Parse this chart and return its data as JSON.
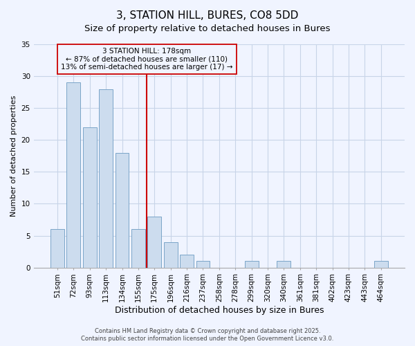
{
  "title": "3, STATION HILL, BURES, CO8 5DD",
  "subtitle": "Size of property relative to detached houses in Bures",
  "xlabel": "Distribution of detached houses by size in Bures",
  "ylabel": "Number of detached properties",
  "bar_labels": [
    "51sqm",
    "72sqm",
    "93sqm",
    "113sqm",
    "134sqm",
    "155sqm",
    "175sqm",
    "196sqm",
    "216sqm",
    "237sqm",
    "258sqm",
    "278sqm",
    "299sqm",
    "320sqm",
    "340sqm",
    "361sqm",
    "381sqm",
    "402sqm",
    "423sqm",
    "443sqm",
    "464sqm"
  ],
  "bar_values": [
    6,
    29,
    22,
    28,
    18,
    6,
    8,
    4,
    2,
    1,
    0,
    0,
    1,
    0,
    1,
    0,
    0,
    0,
    0,
    0,
    1
  ],
  "bar_color": "#ccdcee",
  "bar_edgecolor": "#7aa4c8",
  "vline_index": 6,
  "vline_color": "#cc0000",
  "ylim": [
    0,
    35
  ],
  "yticks": [
    0,
    5,
    10,
    15,
    20,
    25,
    30,
    35
  ],
  "annotation_title": "3 STATION HILL: 178sqm",
  "annotation_line1": "← 87% of detached houses are smaller (110)",
  "annotation_line2": "13% of semi-detached houses are larger (17) →",
  "annotation_box_edgecolor": "#cc0000",
  "background_color": "#f0f4ff",
  "grid_color": "#c8d4e8",
  "footer1": "Contains HM Land Registry data © Crown copyright and database right 2025.",
  "footer2": "Contains public sector information licensed under the Open Government Licence v3.0.",
  "title_fontsize": 11,
  "subtitle_fontsize": 9.5,
  "xlabel_fontsize": 9,
  "ylabel_fontsize": 8,
  "tick_fontsize": 7.5,
  "annotation_fontsize": 7.5,
  "footer_fontsize": 6
}
